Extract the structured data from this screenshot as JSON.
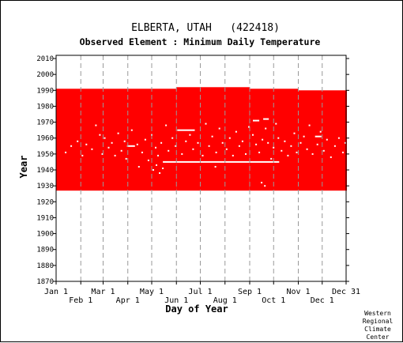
{
  "chart_data": {
    "type": "heatmap",
    "title": "ELBERTA, UTAH   (422418)",
    "subtitle": "Observed Element : Minimum Daily Temperature",
    "xlabel": "Day of Year",
    "ylabel": "Year",
    "ylim": [
      1870,
      2012
    ],
    "xlim": [
      1,
      365
    ],
    "y_ticks": [
      1870,
      1880,
      1890,
      1900,
      1910,
      1920,
      1930,
      1940,
      1950,
      1960,
      1970,
      1980,
      1990,
      2000,
      2010
    ],
    "x_ticks_upper": [
      {
        "label": "Jan 1",
        "day": 1
      },
      {
        "label": "Mar 1",
        "day": 60
      },
      {
        "label": "May 1",
        "day": 121
      },
      {
        "label": "Jul 1",
        "day": 182
      },
      {
        "label": "Sep 1",
        "day": 244
      },
      {
        "label": "Nov 1",
        "day": 305
      },
      {
        "label": "Dec 31",
        "day": 365
      }
    ],
    "x_ticks_lower": [
      {
        "label": "Feb 1",
        "day": 32
      },
      {
        "label": "Apr 1",
        "day": 91
      },
      {
        "label": "Jun 1",
        "day": 152
      },
      {
        "label": "Aug 1",
        "day": 213
      },
      {
        "label": "Oct 1",
        "day": 274
      },
      {
        "label": "Dec 1",
        "day": 335
      }
    ],
    "gridlines": "vertical dashed at month starts",
    "data_color": "#ff0000",
    "record_blocks": [
      {
        "day_start": 1,
        "day_end": 59,
        "year_start": 1927,
        "year_end": 1991
      },
      {
        "day_start": 60,
        "day_end": 151,
        "year_start": 1927,
        "year_end": 1991
      },
      {
        "day_start": 152,
        "day_end": 243,
        "year_start": 1927,
        "year_end": 1992
      },
      {
        "day_start": 244,
        "day_end": 304,
        "year_start": 1927,
        "year_end": 1991
      },
      {
        "day_start": 305,
        "day_end": 365,
        "year_start": 1927,
        "year_end": 1990
      }
    ],
    "missing_segments": [
      {
        "year": 1945,
        "day_start": 135,
        "day_end": 281
      },
      {
        "year": 1965,
        "day_start": 153,
        "day_end": 175
      },
      {
        "year": 1971,
        "day_start": 248,
        "day_end": 256
      },
      {
        "year": 1972,
        "day_start": 261,
        "day_end": 268
      },
      {
        "year": 1961,
        "day_start": 326,
        "day_end": 334
      },
      {
        "year": 1955,
        "day_start": 90,
        "day_end": 100
      }
    ],
    "missing_days": [
      [
        12,
        1951
      ],
      [
        19,
        1955
      ],
      [
        27,
        1958
      ],
      [
        33,
        1949
      ],
      [
        38,
        1956
      ],
      [
        45,
        1953
      ],
      [
        50,
        1968
      ],
      [
        55,
        1962
      ],
      [
        58,
        1950
      ],
      [
        61,
        1960
      ],
      [
        66,
        1954
      ],
      [
        70,
        1957
      ],
      [
        74,
        1949
      ],
      [
        78,
        1963
      ],
      [
        82,
        1952
      ],
      [
        86,
        1958
      ],
      [
        88,
        1947
      ],
      [
        95,
        1965
      ],
      [
        102,
        1956
      ],
      [
        108,
        1951
      ],
      [
        112,
        1959
      ],
      [
        116,
        1946
      ],
      [
        120,
        1962
      ],
      [
        125,
        1954
      ],
      [
        128,
        1949
      ],
      [
        132,
        1957
      ],
      [
        138,
        1968
      ],
      [
        141,
        1952
      ],
      [
        146,
        1960
      ],
      [
        150,
        1955
      ],
      [
        158,
        1950
      ],
      [
        163,
        1958
      ],
      [
        168,
        1962
      ],
      [
        172,
        1953
      ],
      [
        178,
        1957
      ],
      [
        184,
        1949
      ],
      [
        188,
        1969
      ],
      [
        192,
        1955
      ],
      [
        196,
        1961
      ],
      [
        201,
        1951
      ],
      [
        205,
        1966
      ],
      [
        209,
        1957
      ],
      [
        214,
        1953
      ],
      [
        218,
        1960
      ],
      [
        222,
        1949
      ],
      [
        226,
        1964
      ],
      [
        230,
        1955
      ],
      [
        234,
        1958
      ],
      [
        238,
        1950
      ],
      [
        242,
        1967
      ],
      [
        247,
        1962
      ],
      [
        251,
        1956
      ],
      [
        255,
        1951
      ],
      [
        259,
        1959
      ],
      [
        263,
        1966
      ],
      [
        266,
        1957
      ],
      [
        270,
        1947
      ],
      [
        273,
        1954
      ],
      [
        276,
        1969
      ],
      [
        279,
        1960
      ],
      [
        283,
        1952
      ],
      [
        287,
        1958
      ],
      [
        291,
        1949
      ],
      [
        295,
        1955
      ],
      [
        299,
        1963
      ],
      [
        302,
        1951
      ],
      [
        307,
        1957
      ],
      [
        311,
        1961
      ],
      [
        315,
        1953
      ],
      [
        318,
        1968
      ],
      [
        322,
        1950
      ],
      [
        328,
        1956
      ],
      [
        332,
        1964
      ],
      [
        336,
        1952
      ],
      [
        340,
        1959
      ],
      [
        345,
        1948
      ],
      [
        350,
        1955
      ],
      [
        355,
        1960
      ],
      [
        360,
        1951
      ],
      [
        363,
        1957
      ],
      [
        122,
        1940
      ],
      [
        126,
        1943
      ],
      [
        130,
        1938
      ],
      [
        134,
        1941
      ],
      [
        258,
        1932
      ],
      [
        262,
        1930
      ],
      [
        104,
        1942
      ],
      [
        200,
        1942
      ]
    ]
  },
  "credit": [
    "Western",
    "Regional",
    "Climate",
    "Center"
  ]
}
